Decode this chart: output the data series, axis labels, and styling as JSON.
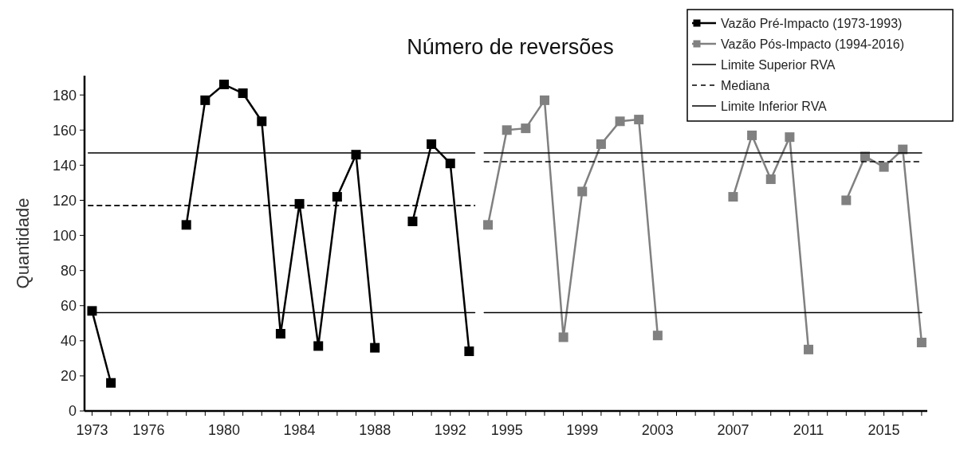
{
  "chart_data": {
    "type": "line",
    "title": "Número de reversões",
    "ylabel": "Quantidade",
    "xlim": [
      1972.6,
      2017.3
    ],
    "ylim": [
      0,
      191
    ],
    "xticks": [
      {
        "value": 1973,
        "label": "1973"
      },
      {
        "value": 1974,
        "label": null
      },
      {
        "value": 1975,
        "label": null
      },
      {
        "value": 1976,
        "label": "1976"
      },
      {
        "value": 1977,
        "label": null
      },
      {
        "value": 1978,
        "label": null
      },
      {
        "value": 1979,
        "label": null
      },
      {
        "value": 1980,
        "label": "1980"
      },
      {
        "value": 1981,
        "label": null
      },
      {
        "value": 1982,
        "label": null
      },
      {
        "value": 1983,
        "label": null
      },
      {
        "value": 1984,
        "label": "1984"
      },
      {
        "value": 1985,
        "label": null
      },
      {
        "value": 1986,
        "label": null
      },
      {
        "value": 1987,
        "label": null
      },
      {
        "value": 1988,
        "label": "1988"
      },
      {
        "value": 1989,
        "label": null
      },
      {
        "value": 1990,
        "label": null
      },
      {
        "value": 1991,
        "label": null
      },
      {
        "value": 1992,
        "label": "1992"
      },
      {
        "value": 1993,
        "label": null
      },
      {
        "value": 1994,
        "label": null
      },
      {
        "value": 1995,
        "label": "1995"
      },
      {
        "value": 1996,
        "label": null
      },
      {
        "value": 1997,
        "label": null
      },
      {
        "value": 1998,
        "label": null
      },
      {
        "value": 1999,
        "label": "1999"
      },
      {
        "value": 2000,
        "label": null
      },
      {
        "value": 2001,
        "label": null
      },
      {
        "value": 2002,
        "label": null
      },
      {
        "value": 2003,
        "label": "2003"
      },
      {
        "value": 2004,
        "label": null
      },
      {
        "value": 2005,
        "label": null
      },
      {
        "value": 2006,
        "label": null
      },
      {
        "value": 2007,
        "label": "2007"
      },
      {
        "value": 2008,
        "label": null
      },
      {
        "value": 2009,
        "label": null
      },
      {
        "value": 2010,
        "label": null
      },
      {
        "value": 2011,
        "label": "2011"
      },
      {
        "value": 2012,
        "label": null
      },
      {
        "value": 2013,
        "label": null
      },
      {
        "value": 2014,
        "label": null
      },
      {
        "value": 2015,
        "label": "2015"
      },
      {
        "value": 2016,
        "label": null
      },
      {
        "value": 2017,
        "label": null
      }
    ],
    "yticks": [
      0,
      20,
      40,
      60,
      80,
      100,
      120,
      140,
      160,
      180
    ],
    "grid": false,
    "legend": "top right",
    "series": [
      {
        "name": "Vazão Pré-Impacto (1973-1993)",
        "color": "#000000",
        "marker": "square",
        "line_style": "solid",
        "x": [
          1973,
          1974,
          1975,
          1978,
          1979,
          1980,
          1981,
          1982,
          1983,
          1984,
          1985,
          1986,
          1987,
          1988,
          1989,
          1990,
          1991,
          1992,
          1993
        ],
        "values": [
          57,
          16,
          null,
          106,
          177,
          186,
          181,
          165,
          44,
          118,
          37,
          122,
          146,
          36,
          null,
          108,
          152,
          141,
          34
        ]
      },
      {
        "name": "Vazão Pós-Impacto (1994-2016)",
        "color": "#808080",
        "marker": "square",
        "line_style": "solid",
        "x": [
          1994,
          1995,
          1996,
          1997,
          1998,
          1999,
          2000,
          2001,
          2002,
          2003,
          2004,
          2007,
          2008,
          2009,
          2010,
          2011,
          2012,
          2013,
          2014,
          2015,
          2016,
          2017
        ],
        "values": [
          106,
          160,
          161,
          177,
          42,
          125,
          152,
          165,
          166,
          43,
          null,
          122,
          157,
          132,
          156,
          35,
          null,
          120,
          145,
          139,
          149,
          39
        ]
      },
      {
        "name": "Limite Superior RVA",
        "color": "#000000",
        "marker": "none",
        "line_style": "solid",
        "x": [
          1972.8,
          1993.3,
          1993.5,
          1993.8,
          2017
        ],
        "values": [
          147,
          147,
          null,
          147,
          147
        ]
      },
      {
        "name": "Mediana",
        "color": "#000000",
        "marker": "none",
        "line_style": "dashed",
        "x": [
          1972.8,
          1993.3,
          1993.5,
          1993.8,
          2017
        ],
        "values": [
          117,
          117,
          null,
          142,
          142
        ]
      },
      {
        "name": "Limite Inferior RVA",
        "color": "#000000",
        "marker": "none",
        "line_style": "solid",
        "x": [
          1972.8,
          1993.3,
          1993.5,
          1993.8,
          2017
        ],
        "values": [
          56,
          56,
          null,
          56,
          56
        ]
      }
    ]
  }
}
